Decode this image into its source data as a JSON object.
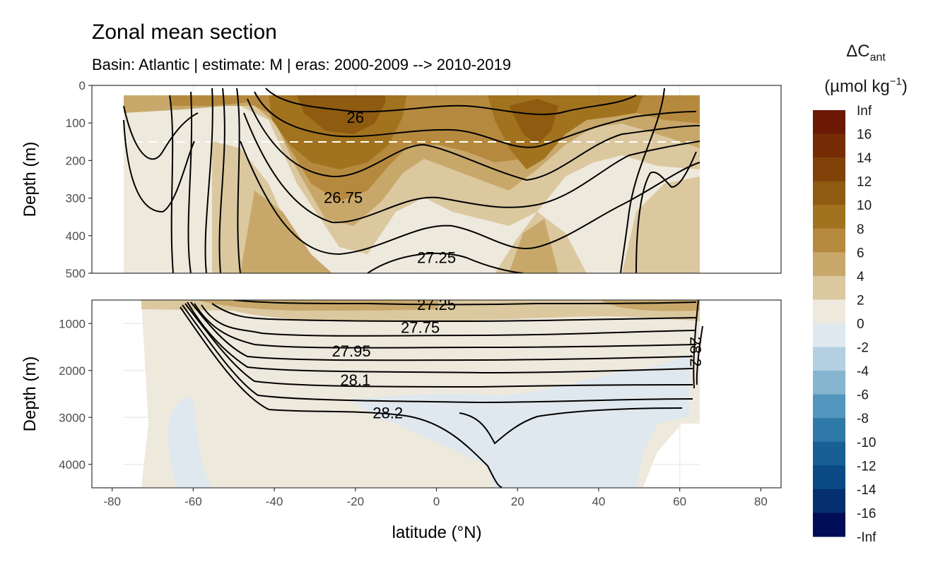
{
  "chart_data": {
    "type": "heatmap",
    "title": "Zonal mean section",
    "subtitle": "Basin: Atlantic | estimate: M  | eras: 2000-2009 --> 2010-2019",
    "xlabel": "latitude (°N)",
    "ylabel": "Depth (m)",
    "xlim": [
      -85,
      85
    ],
    "x_ticks": [
      -80,
      -60,
      -40,
      -20,
      0,
      20,
      40,
      60,
      80
    ],
    "panels": [
      {
        "name": "upper",
        "ylim": [
          0,
          500
        ],
        "y_reversed": true,
        "y_ticks": [
          0,
          100,
          200,
          300,
          400,
          500
        ],
        "reference_depth_dashed": 150
      },
      {
        "name": "lower",
        "ylim": [
          500,
          4500
        ],
        "y_reversed": true,
        "y_ticks": [
          1000,
          2000,
          3000,
          4000
        ]
      }
    ],
    "legend": {
      "title": "ΔC",
      "title_subscript": "ant",
      "units": "(µmol kg",
      "units_superscript": "−1",
      "units_close": ")",
      "placement": "right",
      "labels": [
        "Inf",
        "16",
        "14",
        "12",
        "10",
        "8",
        "6",
        "4",
        "2",
        "0",
        "-2",
        "-4",
        "-6",
        "-8",
        "-10",
        "-12",
        "-14",
        "-16",
        "-Inf"
      ],
      "colors": [
        "#6b1905",
        "#762c05",
        "#81420a",
        "#8e5b10",
        "#a2731f",
        "#b68a3e",
        "#c8a86a",
        "#dbc89f",
        "#eee9dd",
        "#dfe8ee",
        "#b4cfe1",
        "#86b5d0",
        "#5396bd",
        "#2f79a8",
        "#175f95",
        "#0b4a85",
        "#052f6f",
        "#010d56"
      ]
    },
    "density_contour_labels": [
      {
        "text": "26",
        "lat": -20,
        "depth": 85
      },
      {
        "text": "26.75",
        "lat": -23,
        "depth": 298
      },
      {
        "text": "27.25",
        "lat": 0,
        "depth": 458
      },
      {
        "text": "27.25",
        "lat": 0,
        "depth": 590
      },
      {
        "text": "27.75",
        "lat": -4,
        "depth": 1080
      },
      {
        "text": "27.95",
        "lat": -21,
        "depth": 1580
      },
      {
        "text": "28.1",
        "lat": -20,
        "depth": 2200
      },
      {
        "text": "28.2",
        "lat": -12,
        "depth": 2900
      },
      {
        "text": "28.2",
        "lat": 64,
        "depth": 1600
      }
    ]
  }
}
